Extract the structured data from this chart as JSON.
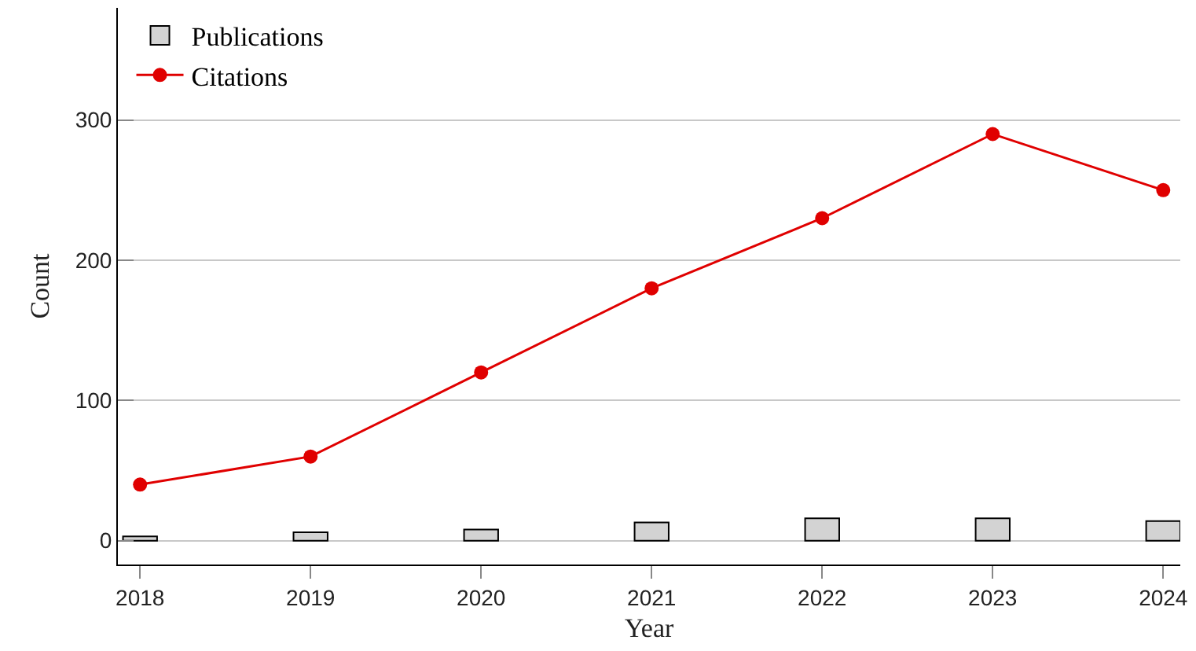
{
  "chart_data": {
    "type": "bar",
    "xlabel": "Year",
    "ylabel": "Count",
    "categories": [
      "2018",
      "2019",
      "2020",
      "2021",
      "2022",
      "2023",
      "2024"
    ],
    "series": [
      {
        "name": "Publications",
        "color": "#d3d3d3",
        "values": [
          3,
          6,
          8,
          13,
          16,
          16,
          14
        ]
      },
      {
        "name": "Citations",
        "type": "line",
        "color": "#e00000",
        "marker": "circle",
        "values": [
          40,
          60,
          120,
          180,
          230,
          290,
          250
        ]
      }
    ],
    "ylim": [
      -17,
      380
    ],
    "yticks": [
      0,
      100,
      200,
      300
    ],
    "grid": "y",
    "legend": "top left"
  }
}
